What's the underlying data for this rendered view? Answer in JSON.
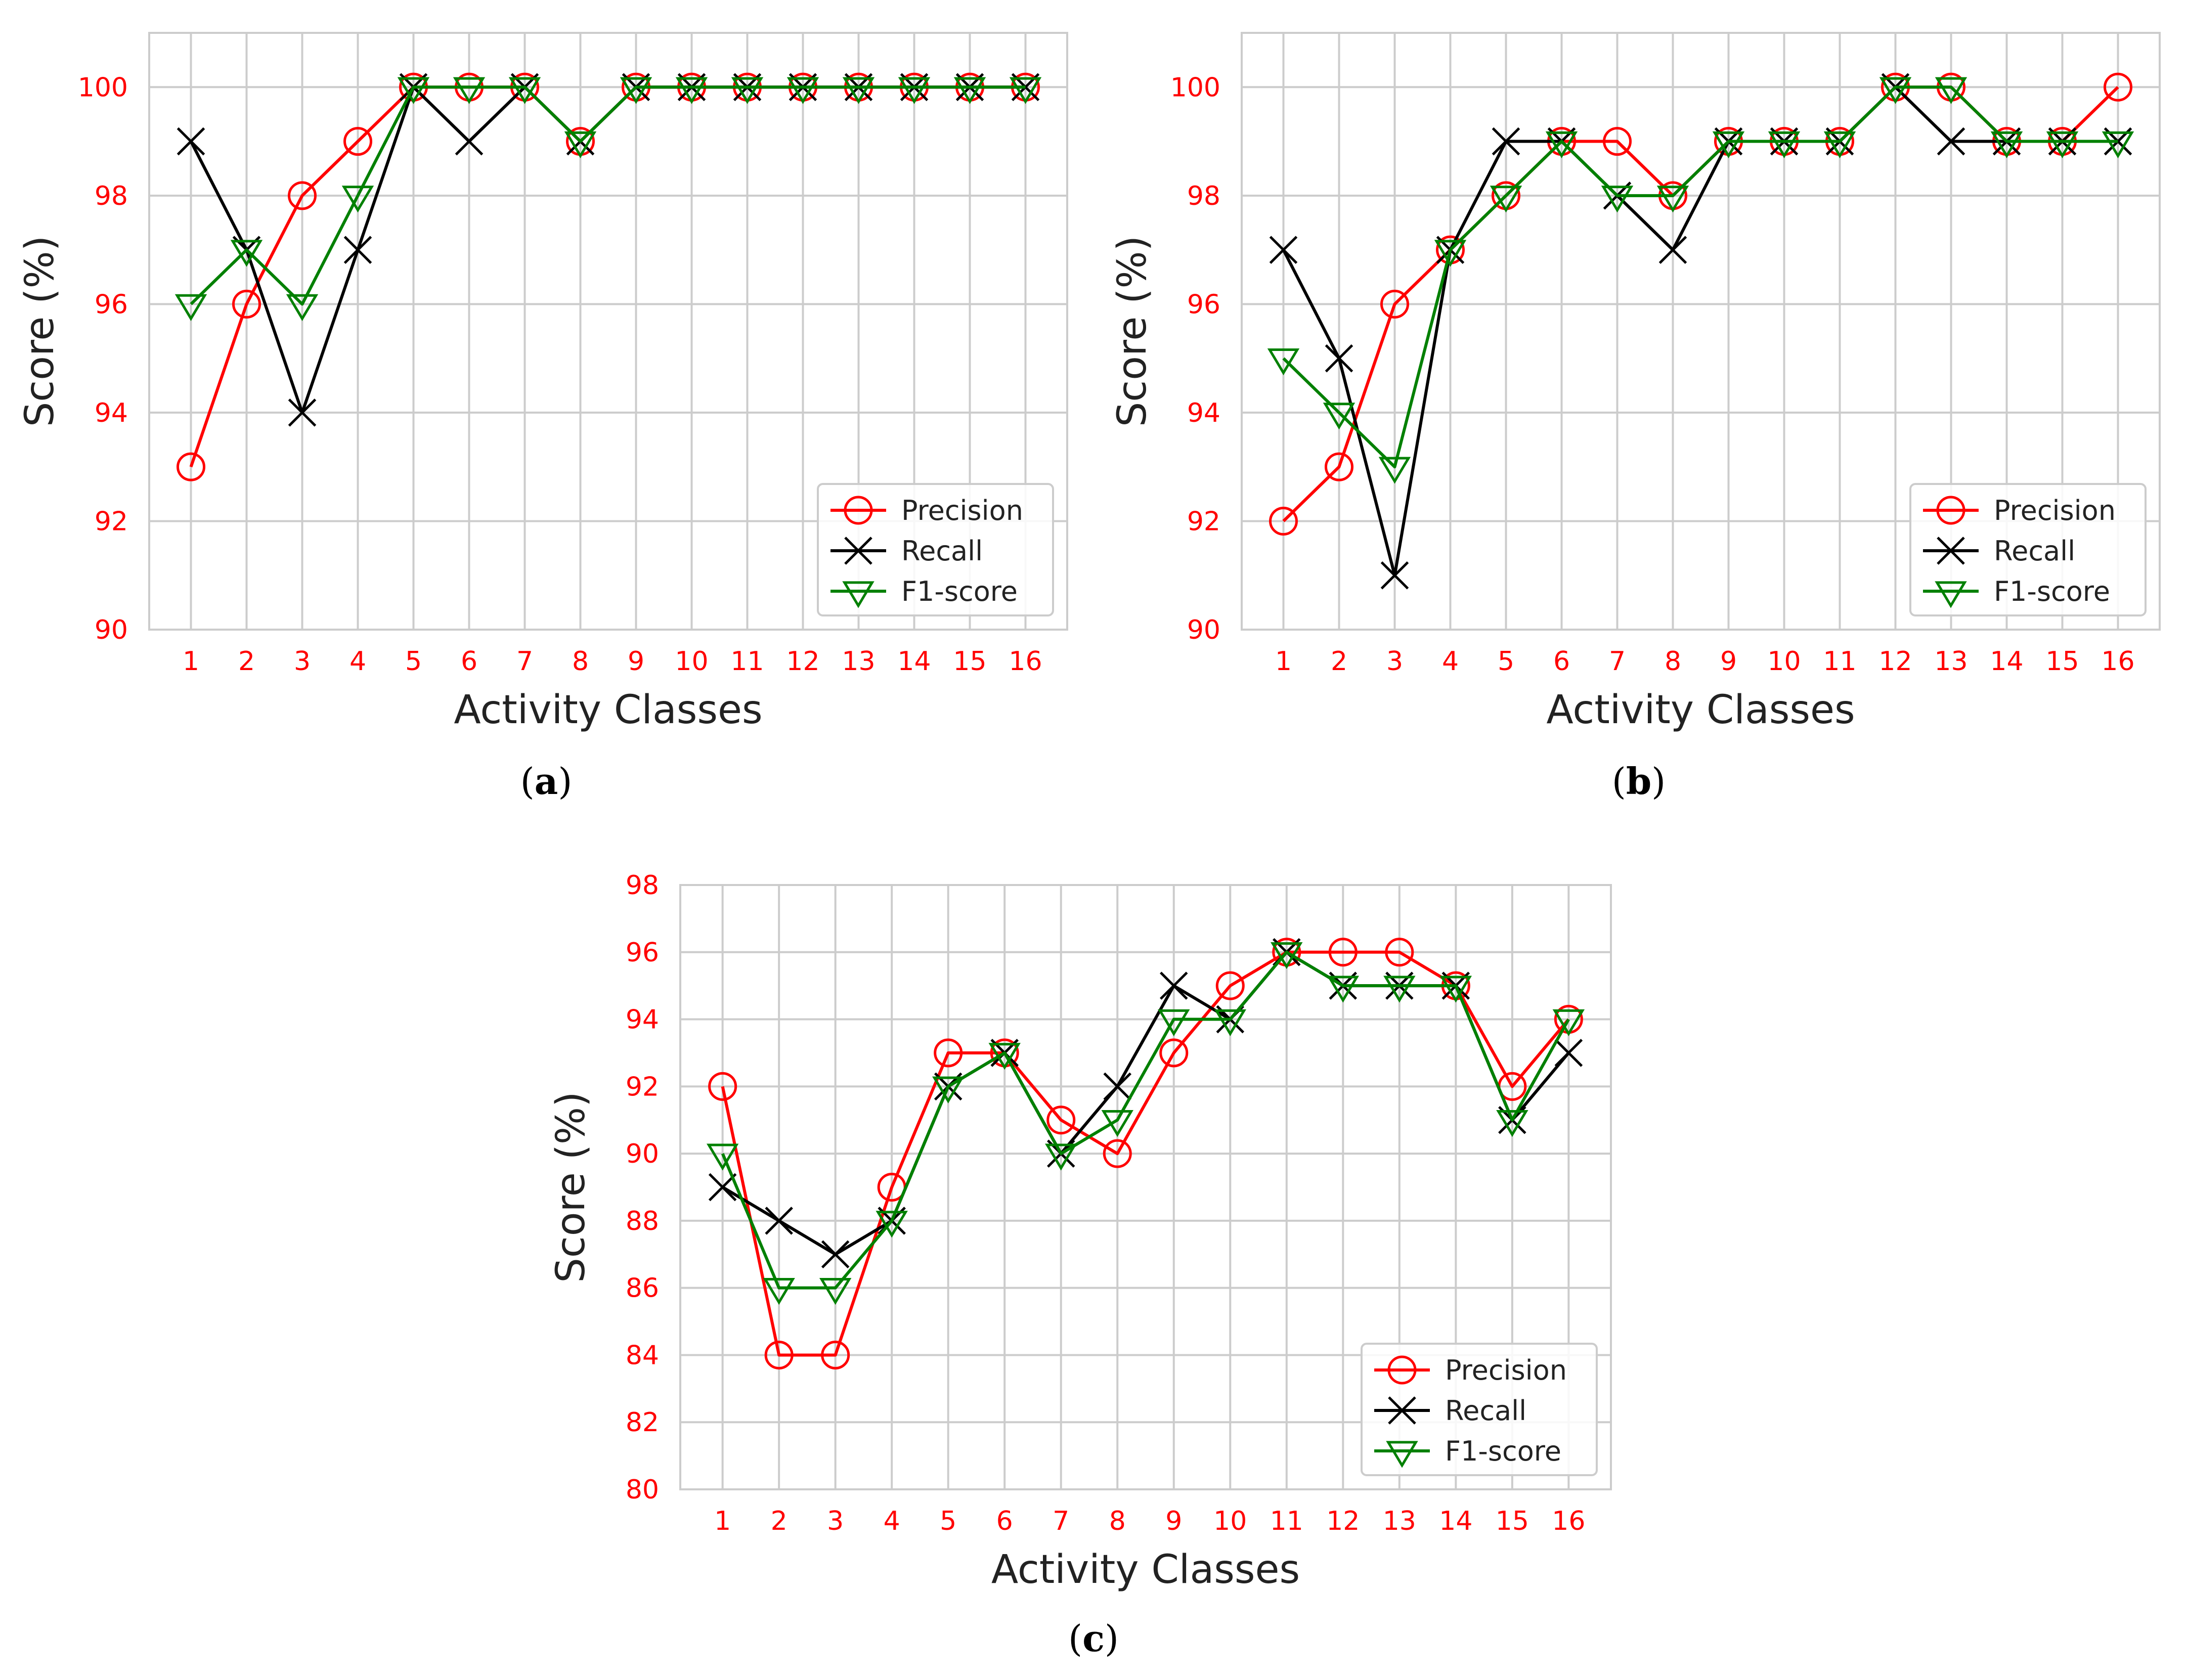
{
  "figure": {
    "captions": [
      "(a)",
      "(b)",
      "(c)"
    ]
  },
  "colors": {
    "precision": "#ff0000",
    "recall": "#000000",
    "f1": "#008000",
    "tick_label": "#ff0000",
    "grid": "#cccccc",
    "axis_text": "#222222"
  },
  "chart_data": [
    {
      "type": "line",
      "panel": "a",
      "caption": "(a)",
      "xlabel": "Activity Classes",
      "ylabel": "Score (%)",
      "ylim": [
        90,
        101
      ],
      "yticks": [
        90,
        92,
        94,
        96,
        98,
        100
      ],
      "categories": [
        "1",
        "2",
        "3",
        "4",
        "5",
        "6",
        "7",
        "8",
        "9",
        "10",
        "11",
        "12",
        "13",
        "14",
        "15",
        "16"
      ],
      "legend_position": "lower right",
      "grid": true,
      "series": [
        {
          "name": "Precision",
          "marker": "circle",
          "values": [
            93,
            96,
            98,
            99,
            100,
            100,
            100,
            99,
            100,
            100,
            100,
            100,
            100,
            100,
            100,
            100
          ]
        },
        {
          "name": "Recall",
          "marker": "x",
          "values": [
            99,
            97,
            94,
            97,
            100,
            99,
            100,
            99,
            100,
            100,
            100,
            100,
            100,
            100,
            100,
            100
          ]
        },
        {
          "name": "F1-score",
          "marker": "triangle-down",
          "values": [
            96,
            97,
            96,
            98,
            100,
            100,
            100,
            99,
            100,
            100,
            100,
            100,
            100,
            100,
            100,
            100
          ]
        }
      ]
    },
    {
      "type": "line",
      "panel": "b",
      "caption": "(b)",
      "xlabel": "Activity Classes",
      "ylabel": "Score (%)",
      "ylim": [
        90,
        101
      ],
      "yticks": [
        90,
        92,
        94,
        96,
        98,
        100
      ],
      "categories": [
        "1",
        "2",
        "3",
        "4",
        "5",
        "6",
        "7",
        "8",
        "9",
        "10",
        "11",
        "12",
        "13",
        "14",
        "15",
        "16"
      ],
      "legend_position": "lower right",
      "grid": true,
      "series": [
        {
          "name": "Precision",
          "marker": "circle",
          "values": [
            92,
            93,
            96,
            97,
            98,
            99,
            99,
            98,
            99,
            99,
            99,
            100,
            100,
            99,
            99,
            100
          ]
        },
        {
          "name": "Recall",
          "marker": "x",
          "values": [
            97,
            95,
            91,
            97,
            99,
            99,
            98,
            97,
            99,
            99,
            99,
            100,
            99,
            99,
            99,
            99
          ]
        },
        {
          "name": "F1-score",
          "marker": "triangle-down",
          "values": [
            95,
            94,
            93,
            97,
            98,
            99,
            98,
            98,
            99,
            99,
            99,
            100,
            100,
            99,
            99,
            99
          ]
        }
      ]
    },
    {
      "type": "line",
      "panel": "c",
      "caption": "(c)",
      "xlabel": "Activity Classes",
      "ylabel": "Score (%)",
      "ylim": [
        80,
        98
      ],
      "yticks": [
        80,
        82,
        84,
        86,
        88,
        90,
        92,
        94,
        96,
        98
      ],
      "categories": [
        "1",
        "2",
        "3",
        "4",
        "5",
        "6",
        "7",
        "8",
        "9",
        "10",
        "11",
        "12",
        "13",
        "14",
        "15",
        "16"
      ],
      "legend_position": "lower right",
      "grid": true,
      "series": [
        {
          "name": "Precision",
          "marker": "circle",
          "values": [
            92,
            84,
            84,
            89,
            93,
            93,
            91,
            90,
            93,
            95,
            96,
            96,
            96,
            95,
            92,
            94
          ]
        },
        {
          "name": "Recall",
          "marker": "x",
          "values": [
            89,
            88,
            87,
            88,
            92,
            93,
            90,
            92,
            95,
            94,
            96,
            95,
            95,
            95,
            91,
            93
          ]
        },
        {
          "name": "F1-score",
          "marker": "triangle-down",
          "values": [
            90,
            86,
            86,
            88,
            92,
            93,
            90,
            91,
            94,
            94,
            96,
            95,
            95,
            95,
            91,
            94
          ]
        }
      ]
    }
  ]
}
